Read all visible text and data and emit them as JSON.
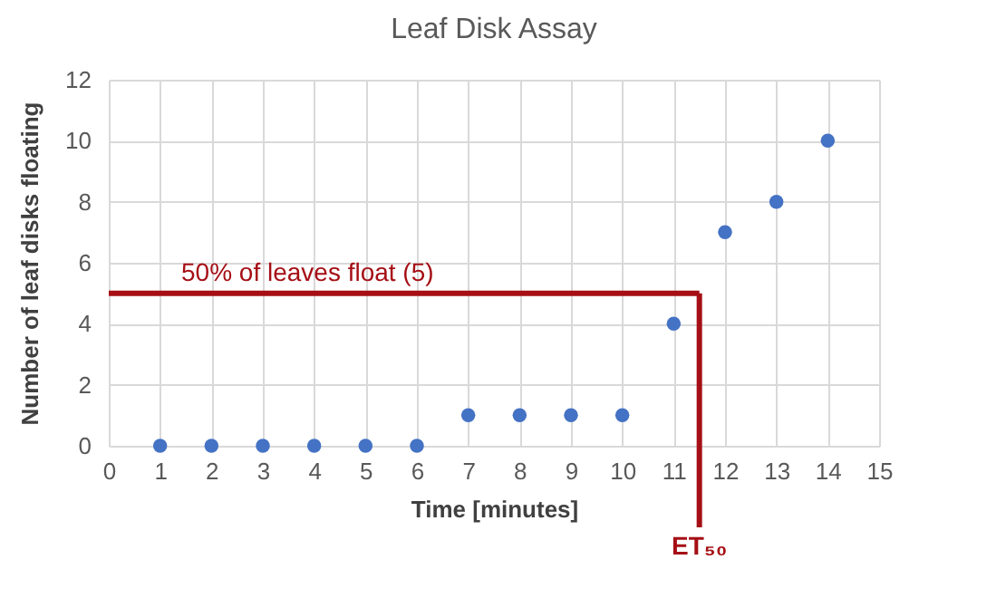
{
  "chart_data": {
    "type": "scatter",
    "title": "Leaf Disk Assay",
    "xlabel": "Time [minutes]",
    "ylabel": "Number of leaf disks floating",
    "x": [
      1,
      2,
      3,
      4,
      5,
      6,
      7,
      8,
      9,
      10,
      11,
      12,
      13,
      14
    ],
    "series": [
      {
        "color": "#4472c4",
        "values": [
          0,
          0,
          0,
          0,
          0,
          0,
          1,
          1,
          1,
          1,
          4,
          7,
          8,
          10
        ]
      }
    ],
    "xlim": [
      0,
      15
    ],
    "xticks": [
      0,
      1,
      2,
      3,
      4,
      5,
      6,
      7,
      8,
      9,
      10,
      11,
      12,
      13,
      14,
      15
    ],
    "ylim": [
      0,
      12
    ],
    "yticks": [
      0,
      2,
      4,
      6,
      8,
      10,
      12
    ],
    "grid": true,
    "marker": "circle",
    "ref_lines": [
      {
        "axis": "y",
        "value": 5,
        "label": "50% of leaves float (5)",
        "color": "#a50f15"
      },
      {
        "axis": "x",
        "value": 11.5,
        "label": "ET₅₀",
        "color": "#a50f15"
      }
    ]
  }
}
